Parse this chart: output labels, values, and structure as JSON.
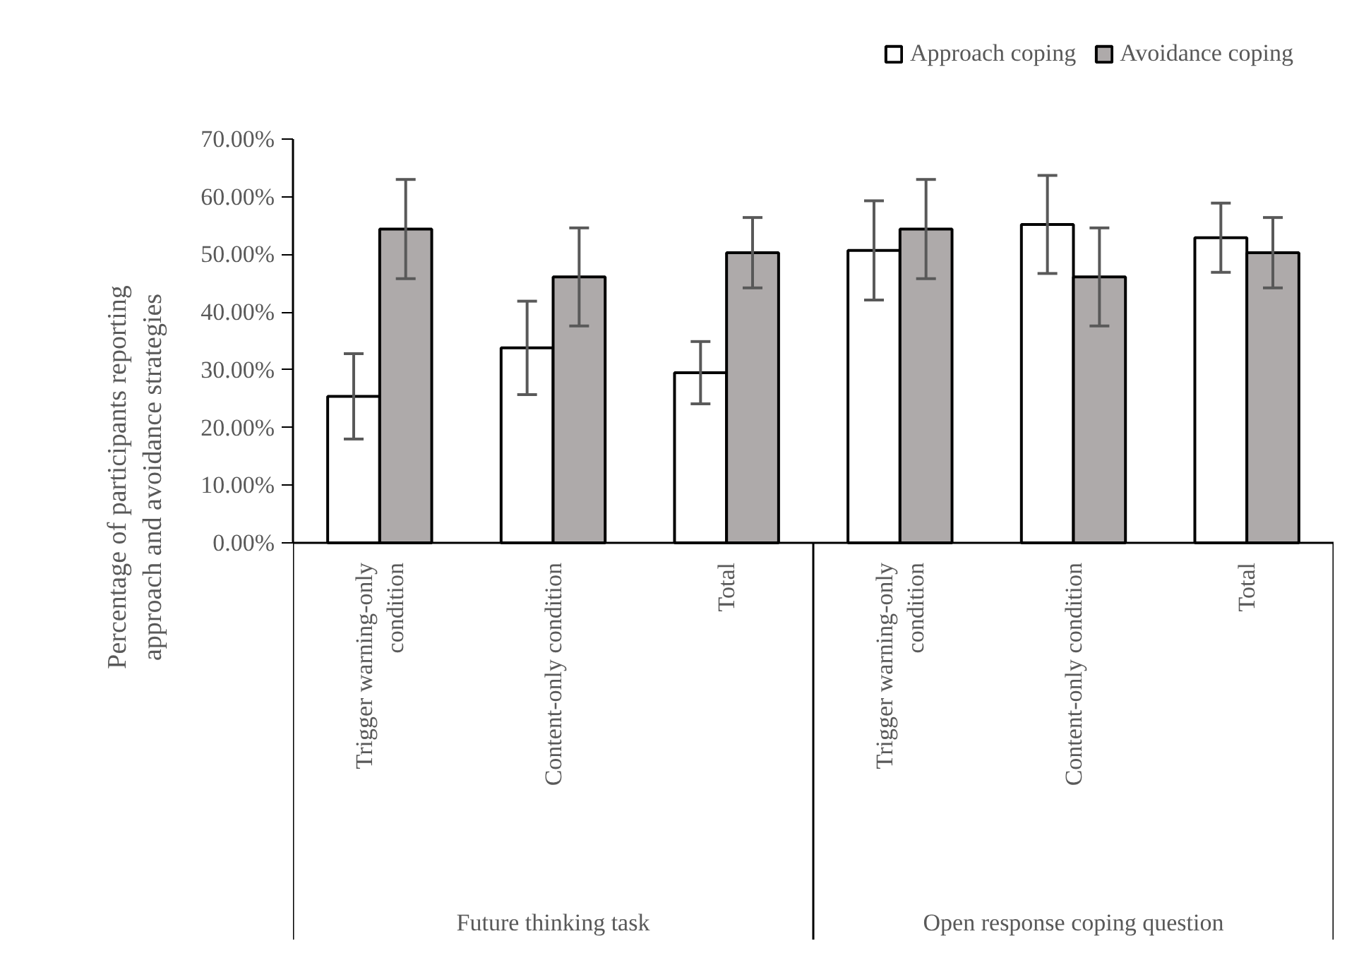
{
  "chart_data": {
    "type": "bar",
    "ylabel": "Percentage of participants reporting approach and avoidance strategies",
    "categories": [
      "Trigger warning-only condition",
      "Content-only condition",
      "Total",
      "Trigger warning-only condition",
      "Content-only condition",
      "Total"
    ],
    "annotations": [
      "Future thinking task",
      "Open response coping question"
    ],
    "series": [
      {
        "name": "Approach coping",
        "color": "#ffffff",
        "values": [
          25.4,
          33.8,
          29.5,
          50.7,
          55.2,
          52.9
        ],
        "errors": [
          7.4,
          8.1,
          5.4,
          8.6,
          8.5,
          6.0
        ]
      },
      {
        "name": "Avoidance coping",
        "color": "#aeaaaa",
        "values": [
          54.4,
          46.1,
          50.3,
          54.4,
          46.1,
          50.3
        ],
        "errors": [
          8.6,
          8.5,
          6.1,
          8.6,
          8.5,
          6.1
        ]
      }
    ],
    "ylim": [
      0,
      70
    ],
    "yticks": [
      {
        "value": 0,
        "label": "0.00%"
      },
      {
        "value": 10,
        "label": "10.00%"
      },
      {
        "value": 20,
        "label": "20.00%"
      },
      {
        "value": 30,
        "label": "30.00%"
      },
      {
        "value": 40,
        "label": "40.00%"
      },
      {
        "value": 50,
        "label": "50.00%"
      },
      {
        "value": 60,
        "label": "60.00%"
      },
      {
        "value": 70,
        "label": "70.00%"
      }
    ],
    "grid": false,
    "legend": "top right"
  }
}
